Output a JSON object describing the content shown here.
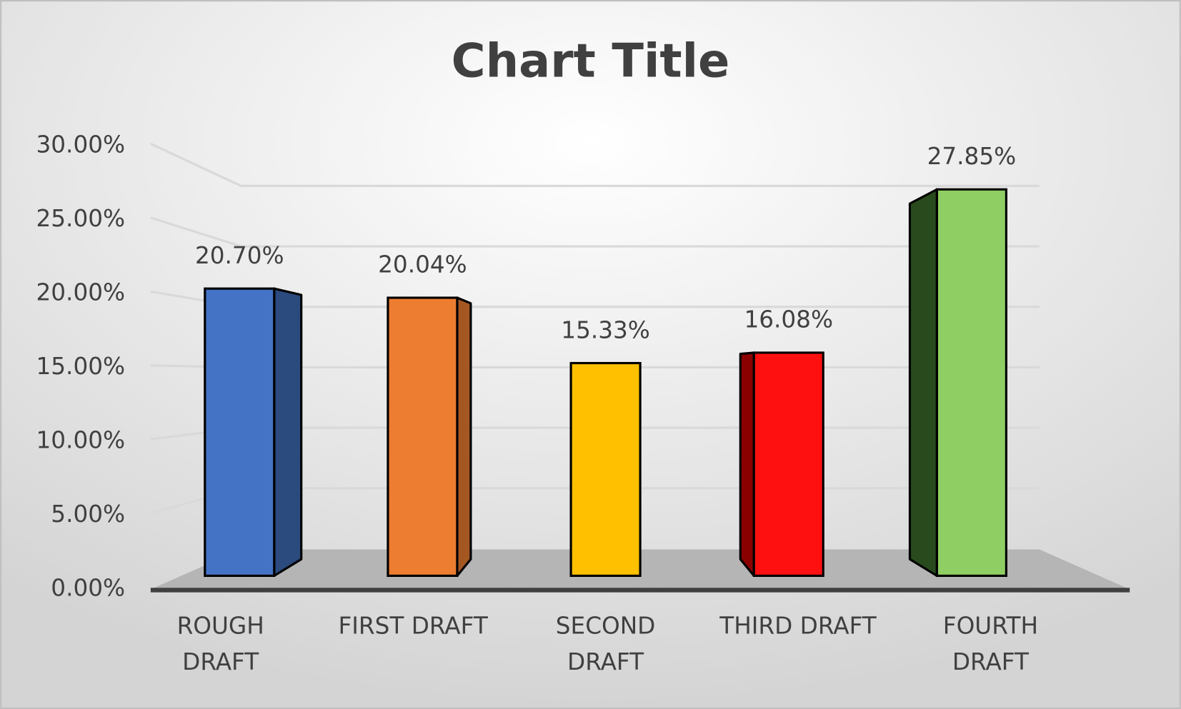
{
  "chart_data": {
    "type": "bar3d",
    "title": "Chart Title",
    "categories": [
      "ROUGH DRAFT",
      "FIRST DRAFT",
      "SECOND DRAFT",
      "THIRD DRAFT",
      "FOURTH DRAFT"
    ],
    "values": [
      20.7,
      20.04,
      15.33,
      16.08,
      27.85
    ],
    "value_labels": [
      "20.70%",
      "20.04%",
      "15.33%",
      "16.08%",
      "27.85%"
    ],
    "colors": [
      "#4472c4",
      "#ed7d31",
      "#ffc000",
      "#ff1010",
      "#8fce63"
    ],
    "side_colors": [
      "#2b4a7e",
      "#a55722",
      "#b38700",
      "#8a0000",
      "#284a1c"
    ],
    "ylim": [
      0,
      30
    ],
    "yticks": [
      {
        "value": 0,
        "label": "0.00%"
      },
      {
        "value": 5,
        "label": "5.00%"
      },
      {
        "value": 10,
        "label": "10.00%"
      },
      {
        "value": 15,
        "label": "15.00%"
      },
      {
        "value": 20,
        "label": "20.00%"
      },
      {
        "value": 25,
        "label": "25.00%"
      },
      {
        "value": 30,
        "label": "30.00%"
      }
    ],
    "grid": true
  }
}
